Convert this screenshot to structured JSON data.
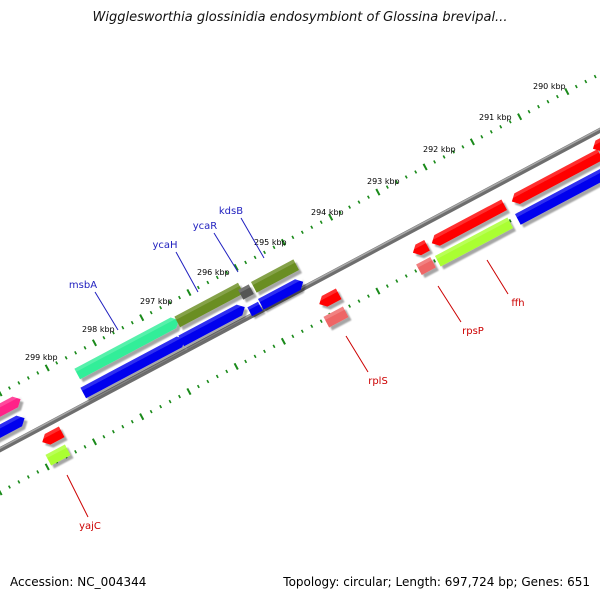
{
  "title": "Wigglesworthia glossinidia endosymbiont of Glossina brevipal...",
  "footer": {
    "accession": "Accession: NC_004344",
    "topology": "Topology: circular; Length: 697,724 bp; Genes: 651"
  },
  "colors": {
    "backbone": "#808080",
    "ticks": "#1a8a1a",
    "forward_label": "#1f1fbf",
    "reverse_label": "#cc0000"
  },
  "kbp_labels": [
    {
      "kbp": 290,
      "text": "290 kbp"
    },
    {
      "kbp": 291,
      "text": "291 kbp"
    },
    {
      "kbp": 292,
      "text": "292 kbp"
    },
    {
      "kbp": 293,
      "text": "293 kbp"
    },
    {
      "kbp": 294,
      "text": "294 kbp"
    },
    {
      "kbp": 295,
      "text": "295 kbp"
    },
    {
      "kbp": 296,
      "text": "296 kbp"
    },
    {
      "kbp": 297,
      "text": "297 kbp"
    },
    {
      "kbp": 298,
      "text": "298 kbp"
    },
    {
      "kbp": 299,
      "text": "299 kbp"
    }
  ],
  "genes": [
    {
      "name": "msbA",
      "strand": "forward",
      "color": "#33ee99"
    },
    {
      "name": "ycaH",
      "strand": "forward",
      "color": "#6b8e23"
    },
    {
      "name": "ycaR",
      "strand": "forward",
      "color": "#555555"
    },
    {
      "name": "kdsB",
      "strand": "forward",
      "color": "#6b8e23"
    },
    {
      "name": "rplS",
      "strand": "reverse",
      "color": "#ff0000"
    },
    {
      "name": "rpsP",
      "strand": "reverse",
      "color": "#ff0000"
    },
    {
      "name": "ffh",
      "strand": "reverse",
      "color": "#ff0000"
    },
    {
      "name": "yajC",
      "strand": "reverse",
      "color": "#ff0000"
    }
  ]
}
